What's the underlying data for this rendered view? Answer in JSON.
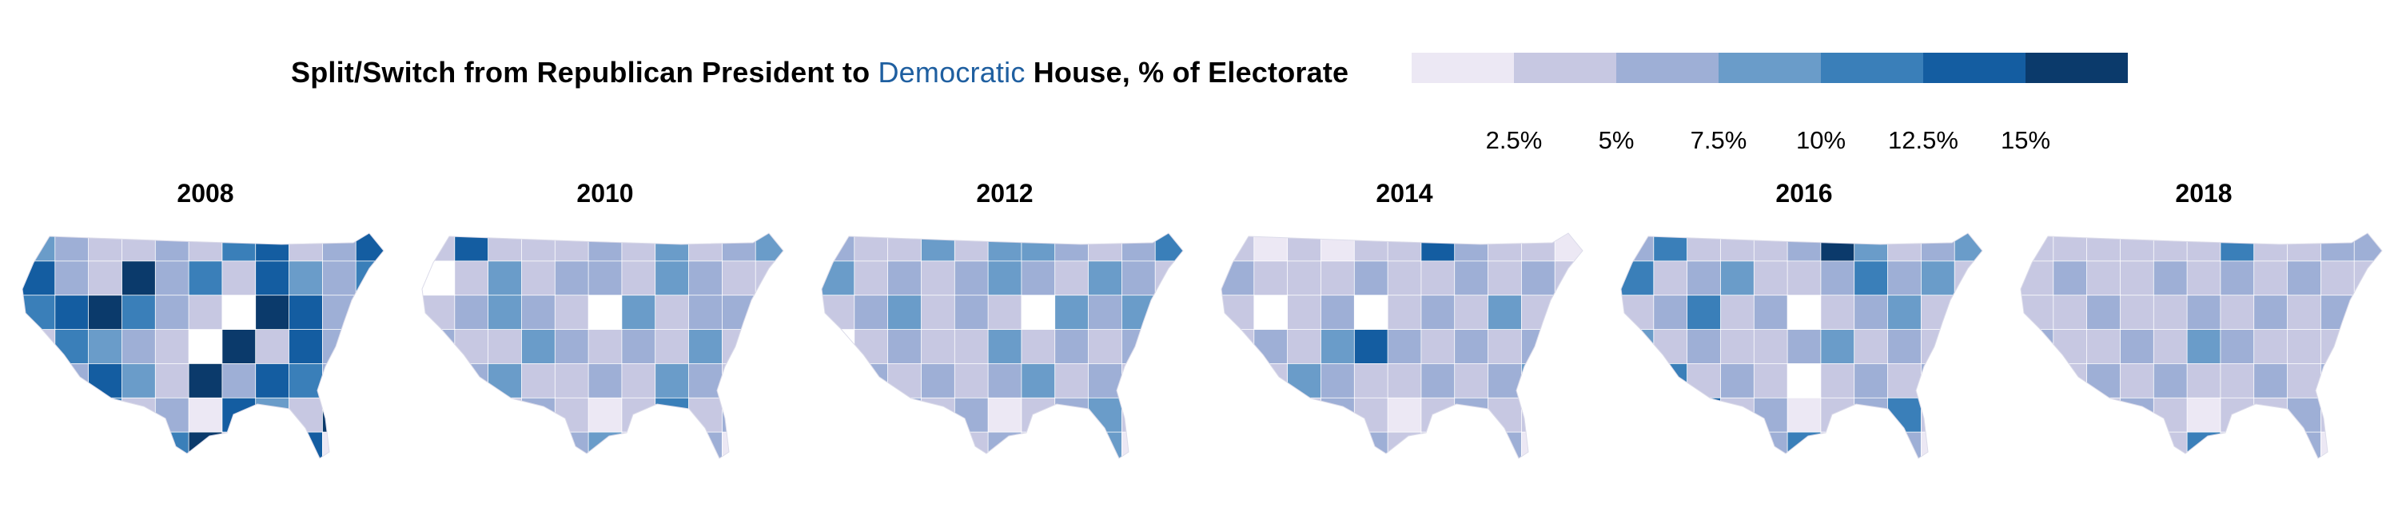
{
  "title": {
    "before": "Split/Switch from Republican President to ",
    "highlight": "Democratic",
    "after": " House, % of Electorate",
    "highlight_color": "#1f5fa0"
  },
  "legend": {
    "colors": [
      "#ece8f4",
      "#c7c8e2",
      "#9eafd6",
      "#6a9cc9",
      "#3a7fb9",
      "#145da1",
      "#0b3a6b"
    ],
    "ticks": [
      "2.5%",
      "5%",
      "7.5%",
      "10%",
      "12.5%",
      "15%"
    ]
  },
  "years": [
    "2008",
    "2010",
    "2012",
    "2014",
    "2016",
    "2018"
  ],
  "maps": {
    "2008": [
      [
        3,
        2,
        1,
        1,
        2,
        1,
        4,
        5,
        1,
        2,
        5
      ],
      [
        5,
        2,
        1,
        6,
        2,
        4,
        1,
        5,
        3,
        2,
        4
      ],
      [
        4,
        5,
        6,
        4,
        2,
        1,
        0,
        6,
        5,
        2,
        3
      ],
      [
        1,
        4,
        3,
        2,
        1,
        0,
        6,
        1,
        5,
        2,
        6
      ],
      [
        1,
        2,
        5,
        3,
        1,
        6,
        2,
        5,
        4,
        2,
        1
      ],
      [
        0,
        0,
        4,
        1,
        2,
        0,
        5,
        3,
        1,
        6,
        0
      ],
      [
        0,
        0,
        0,
        2,
        4,
        6,
        1,
        2,
        5,
        0,
        0
      ]
    ],
    "2010": [
      [
        1,
        5,
        1,
        1,
        1,
        2,
        1,
        3,
        1,
        2,
        3
      ],
      [
        0,
        1,
        3,
        1,
        2,
        2,
        1,
        3,
        2,
        1,
        1
      ],
      [
        1,
        2,
        3,
        2,
        1,
        0,
        3,
        1,
        2,
        2,
        1
      ],
      [
        2,
        1,
        1,
        3,
        2,
        1,
        2,
        1,
        3,
        1,
        2
      ],
      [
        1,
        2,
        3,
        1,
        1,
        2,
        1,
        3,
        2,
        1,
        1
      ],
      [
        0,
        0,
        1,
        2,
        1,
        0,
        1,
        4,
        1,
        2,
        0
      ],
      [
        0,
        0,
        0,
        1,
        2,
        3,
        1,
        1,
        2,
        0,
        0
      ]
    ],
    "2012": [
      [
        2,
        1,
        1,
        3,
        1,
        3,
        3,
        2,
        1,
        2,
        4
      ],
      [
        3,
        1,
        2,
        1,
        2,
        3,
        2,
        1,
        3,
        2,
        1
      ],
      [
        1,
        2,
        3,
        1,
        2,
        1,
        0,
        3,
        2,
        3,
        2
      ],
      [
        0,
        1,
        2,
        1,
        1,
        3,
        1,
        2,
        1,
        2,
        3
      ],
      [
        1,
        2,
        1,
        2,
        1,
        2,
        3,
        1,
        2,
        1,
        2
      ],
      [
        0,
        0,
        2,
        1,
        2,
        0,
        1,
        2,
        3,
        1,
        0
      ],
      [
        0,
        0,
        0,
        1,
        1,
        2,
        1,
        1,
        3,
        0,
        0
      ]
    ],
    "2014": [
      [
        1,
        0,
        1,
        0,
        1,
        1,
        5,
        2,
        1,
        1,
        0
      ],
      [
        2,
        1,
        1,
        1,
        2,
        1,
        1,
        2,
        1,
        2,
        1
      ],
      [
        1,
        0,
        1,
        2,
        0,
        1,
        2,
        1,
        3,
        1,
        2
      ],
      [
        1,
        2,
        1,
        3,
        5,
        2,
        1,
        2,
        1,
        2,
        1
      ],
      [
        2,
        1,
        3,
        2,
        1,
        1,
        2,
        1,
        2,
        3,
        1
      ],
      [
        0,
        0,
        1,
        2,
        1,
        0,
        1,
        2,
        1,
        1,
        0
      ],
      [
        0,
        0,
        0,
        1,
        2,
        1,
        1,
        1,
        2,
        0,
        0
      ]
    ],
    "2016": [
      [
        2,
        4,
        1,
        1,
        1,
        2,
        6,
        3,
        1,
        2,
        3
      ],
      [
        4,
        1,
        2,
        3,
        1,
        1,
        2,
        4,
        2,
        3,
        1
      ],
      [
        1,
        2,
        4,
        1,
        2,
        0,
        1,
        2,
        3,
        1,
        2
      ],
      [
        3,
        1,
        2,
        1,
        1,
        2,
        3,
        1,
        2,
        1,
        1
      ],
      [
        1,
        4,
        1,
        2,
        1,
        0,
        1,
        2,
        1,
        2,
        1
      ],
      [
        0,
        0,
        5,
        1,
        2,
        0,
        1,
        2,
        4,
        1,
        0
      ],
      [
        0,
        0,
        0,
        1,
        2,
        4,
        1,
        1,
        2,
        0,
        0
      ]
    ],
    "2018": [
      [
        1,
        1,
        1,
        1,
        1,
        1,
        4,
        1,
        1,
        2,
        2
      ],
      [
        1,
        2,
        1,
        1,
        2,
        1,
        2,
        1,
        2,
        1,
        1
      ],
      [
        1,
        1,
        2,
        1,
        1,
        2,
        1,
        2,
        1,
        2,
        1
      ],
      [
        2,
        1,
        1,
        2,
        1,
        3,
        2,
        1,
        1,
        1,
        2
      ],
      [
        1,
        1,
        2,
        1,
        2,
        1,
        1,
        2,
        1,
        2,
        1
      ],
      [
        0,
        0,
        1,
        2,
        1,
        0,
        1,
        1,
        2,
        1,
        0
      ],
      [
        0,
        0,
        0,
        1,
        1,
        4,
        1,
        1,
        2,
        0,
        0
      ]
    ]
  }
}
